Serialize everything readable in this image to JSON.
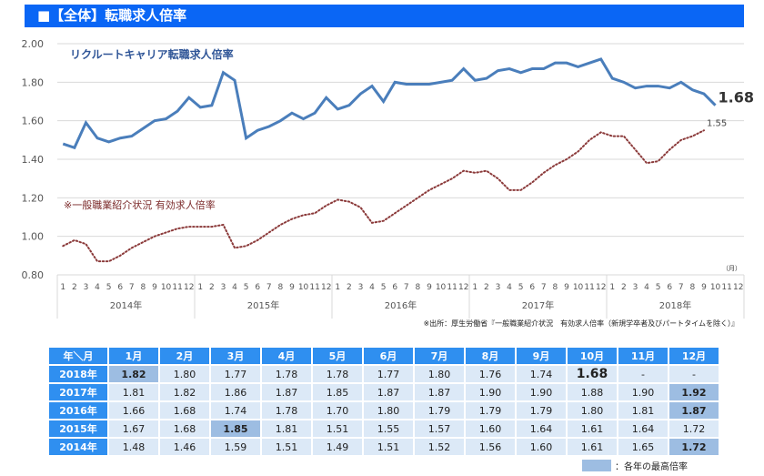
{
  "title": "■【全体】転職求人倍率",
  "chart_data": {
    "type": "line",
    "ylim": [
      0.8,
      2.0
    ],
    "yticks": [
      "2.00",
      "1.80",
      "1.60",
      "1.40",
      "1.20",
      "1.00",
      "0.80"
    ],
    "month_ticks": [
      "1",
      "2",
      "3",
      "4",
      "5",
      "6",
      "7",
      "8",
      "9",
      "10",
      "11",
      "12"
    ],
    "years": [
      "2014年",
      "2015年",
      "2016年",
      "2017年",
      "2018年"
    ],
    "unit_label": "（月）",
    "grid": true,
    "series": [
      {
        "name": "リクルートキャリア転職求人倍率",
        "color": "#4a7ebb",
        "style": "solid",
        "end_label": "1.68",
        "values": [
          1.48,
          1.46,
          1.59,
          1.51,
          1.49,
          1.51,
          1.52,
          1.56,
          1.6,
          1.61,
          1.65,
          1.72,
          1.67,
          1.68,
          1.85,
          1.81,
          1.51,
          1.55,
          1.57,
          1.6,
          1.64,
          1.61,
          1.64,
          1.72,
          1.66,
          1.68,
          1.74,
          1.78,
          1.7,
          1.8,
          1.79,
          1.79,
          1.79,
          1.8,
          1.81,
          1.87,
          1.81,
          1.82,
          1.86,
          1.87,
          1.85,
          1.87,
          1.87,
          1.9,
          1.9,
          1.88,
          1.9,
          1.92,
          1.82,
          1.8,
          1.77,
          1.78,
          1.78,
          1.77,
          1.8,
          1.76,
          1.74,
          1.68
        ]
      },
      {
        "name": "※一般職業紹介状況 有効求人倍率",
        "color": "#8b3a3a",
        "style": "dotted",
        "end_label": "1.55",
        "values": [
          0.95,
          0.98,
          0.96,
          0.87,
          0.87,
          0.9,
          0.94,
          0.97,
          1.0,
          1.02,
          1.04,
          1.05,
          1.05,
          1.05,
          1.06,
          0.94,
          0.95,
          0.98,
          1.02,
          1.06,
          1.09,
          1.11,
          1.12,
          1.16,
          1.19,
          1.18,
          1.15,
          1.07,
          1.08,
          1.12,
          1.16,
          1.2,
          1.24,
          1.27,
          1.3,
          1.34,
          1.33,
          1.34,
          1.3,
          1.24,
          1.24,
          1.28,
          1.33,
          1.37,
          1.4,
          1.44,
          1.5,
          1.54,
          1.52,
          1.52,
          1.45,
          1.38,
          1.39,
          1.45,
          1.5,
          1.52,
          1.55
        ]
      }
    ]
  },
  "source": "※出所：厚生労働省『一般職業紹介状況　有効求人倍率（新規学卒者及びパートタイムを除く）』",
  "table": {
    "corner": "年＼月",
    "months": [
      "1月",
      "2月",
      "3月",
      "4月",
      "5月",
      "6月",
      "7月",
      "8月",
      "9月",
      "10月",
      "11月",
      "12月"
    ],
    "rows": [
      {
        "year": "2018年",
        "values": [
          "1.82",
          "1.80",
          "1.77",
          "1.78",
          "1.78",
          "1.77",
          "1.80",
          "1.76",
          "1.74",
          "1.68",
          "-",
          "-"
        ],
        "max_index": 0
      },
      {
        "year": "2017年",
        "values": [
          "1.81",
          "1.82",
          "1.86",
          "1.87",
          "1.85",
          "1.87",
          "1.87",
          "1.90",
          "1.90",
          "1.88",
          "1.90",
          "1.92"
        ],
        "max_index": 11
      },
      {
        "year": "2016年",
        "values": [
          "1.66",
          "1.68",
          "1.74",
          "1.78",
          "1.70",
          "1.80",
          "1.79",
          "1.79",
          "1.79",
          "1.80",
          "1.81",
          "1.87"
        ],
        "max_index": 11
      },
      {
        "year": "2015年",
        "values": [
          "1.67",
          "1.68",
          "1.85",
          "1.81",
          "1.51",
          "1.55",
          "1.57",
          "1.60",
          "1.64",
          "1.61",
          "1.64",
          "1.72"
        ],
        "max_index": 2
      },
      {
        "year": "2014年",
        "values": [
          "1.48",
          "1.46",
          "1.59",
          "1.51",
          "1.49",
          "1.51",
          "1.52",
          "1.56",
          "1.60",
          "1.61",
          "1.65",
          "1.72"
        ],
        "max_index": 11
      }
    ]
  },
  "legend": "：各年の最高倍率"
}
